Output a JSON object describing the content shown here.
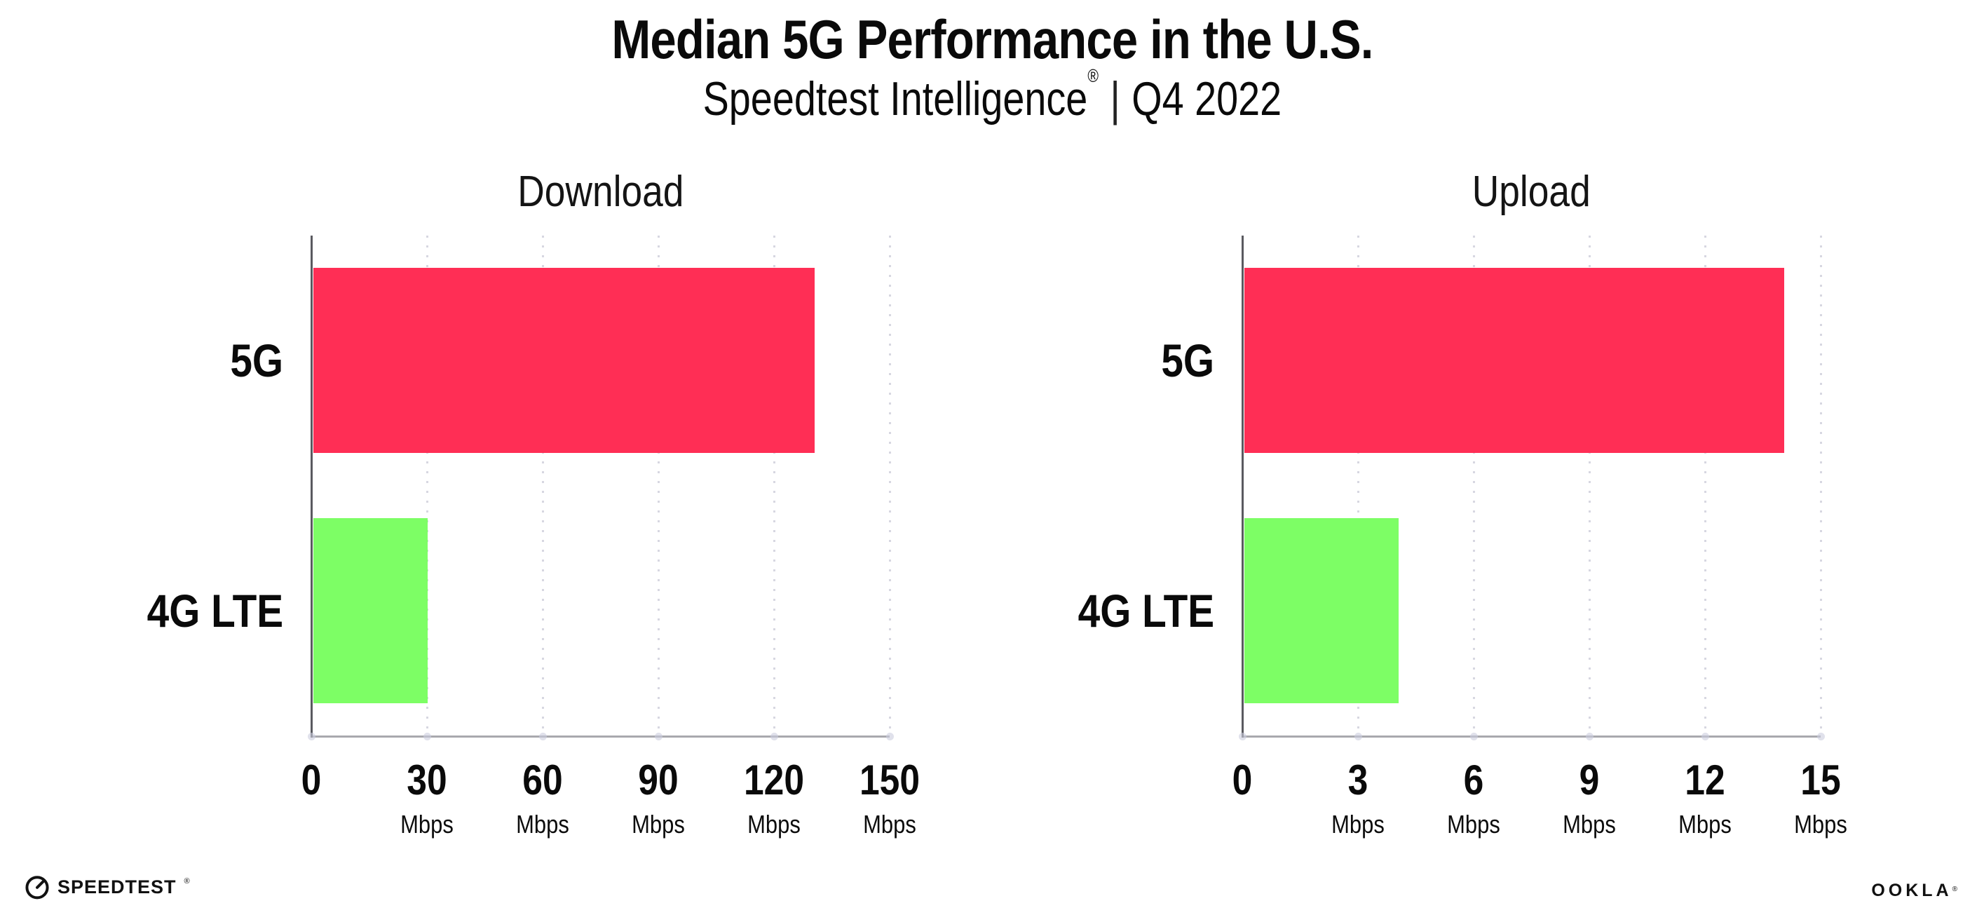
{
  "figure": {
    "title": "Median 5G Performance in the U.S.",
    "subtitle": {
      "brand": "Speedtest Intelligence",
      "mark": "®",
      "divider": "|",
      "period": "Q4 2022"
    }
  },
  "footer": {
    "speedtest_label": "SPEEDTEST",
    "speedtest_mark": "®",
    "ookla_label": "OOKLA",
    "ookla_mark": "®"
  },
  "colors": {
    "bar_5g": "#ff2e55",
    "bar_4g_lte": "#7dfe65",
    "y_axis": "#5a5a60",
    "x_axis": "#a9a9ae",
    "gridline": "#d7d7e1",
    "tick_dot": "#cbcddd",
    "text": "#0a0a0a"
  },
  "chart_data": [
    {
      "type": "bar",
      "orientation": "horizontal",
      "title": "Download",
      "unit": "Mbps",
      "categories": [
        "5G",
        "4G LTE"
      ],
      "values": [
        130,
        29.6
      ],
      "bar_colors": [
        "#ff2e55",
        "#7dfe65"
      ],
      "xlim": [
        0,
        150
      ],
      "xticks": [
        0,
        30,
        60,
        90,
        120,
        150
      ],
      "grid": "vertical-dotted",
      "legend": "none"
    },
    {
      "type": "bar",
      "orientation": "horizontal",
      "title": "Upload",
      "unit": "Mbps",
      "categories": [
        "5G",
        "4G LTE"
      ],
      "values": [
        14,
        4
      ],
      "bar_colors": [
        "#ff2e55",
        "#7dfe65"
      ],
      "xlim": [
        0,
        15
      ],
      "xticks": [
        0,
        3,
        6,
        9,
        12,
        15
      ],
      "grid": "vertical-dotted",
      "legend": "none"
    }
  ]
}
